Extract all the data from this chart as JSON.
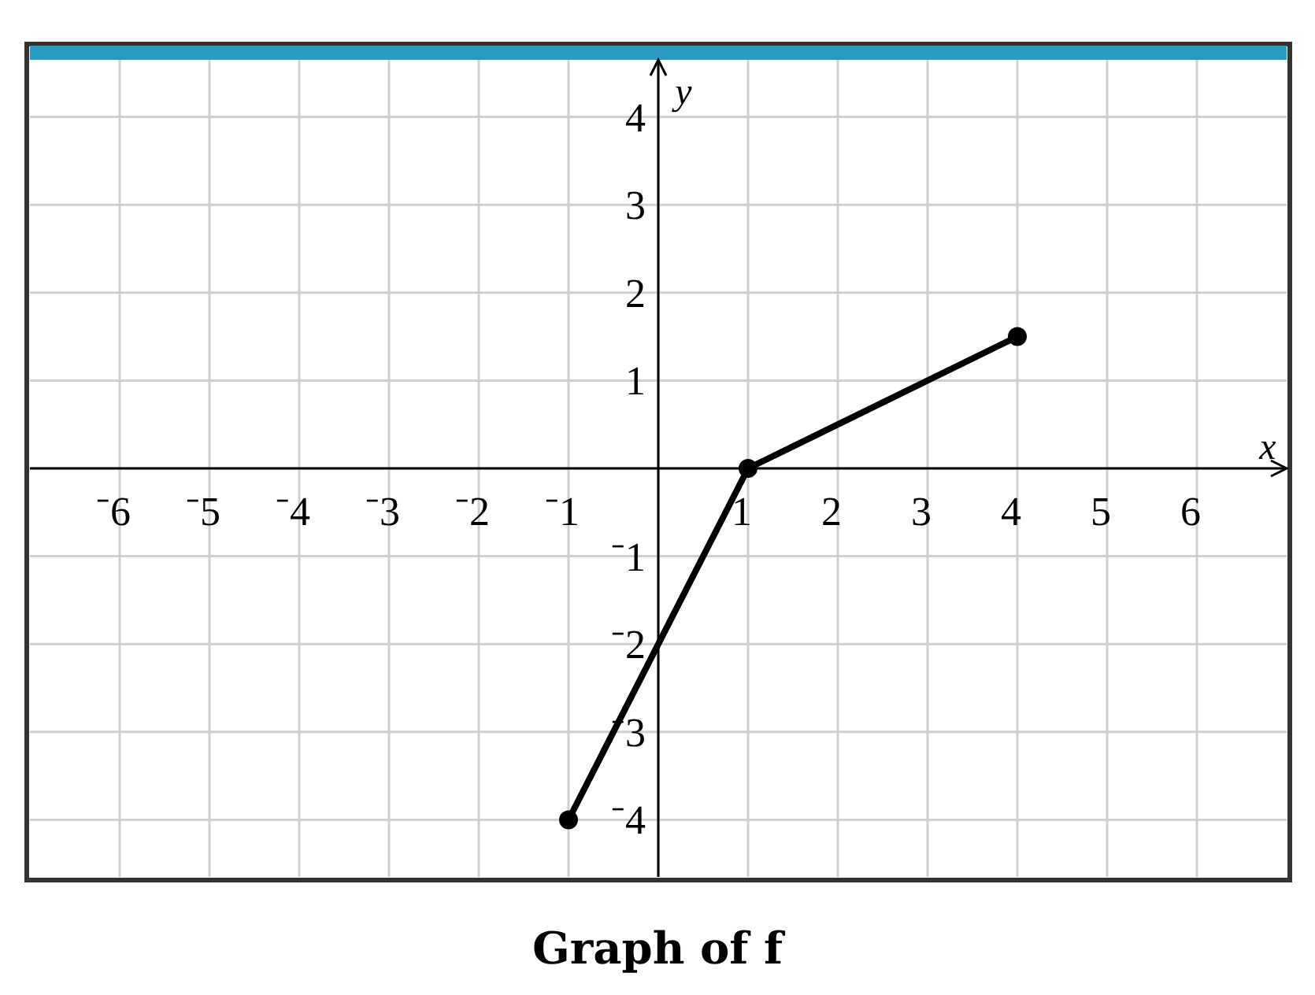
{
  "chart_data": {
    "type": "line",
    "title": "Graph of f",
    "xlabel": "x",
    "ylabel": "y",
    "x": [
      -1,
      1,
      4
    ],
    "series": [
      {
        "color": "#000000",
        "values": [
          -4,
          0,
          1.5
        ]
      }
    ],
    "xlim": [
      -7,
      7
    ],
    "ylim": [
      -4.65,
      4.65
    ],
    "xticks": [
      {
        "value": -6,
        "label": "⁻6"
      },
      {
        "value": -5,
        "label": "⁻5"
      },
      {
        "value": -4,
        "label": "⁻4"
      },
      {
        "value": -3,
        "label": "⁻3"
      },
      {
        "value": -2,
        "label": "⁻2"
      },
      {
        "value": -1,
        "label": "⁻1"
      },
      {
        "value": 0,
        "label": null
      },
      1,
      2,
      3,
      4,
      5,
      6
    ],
    "yticks": [
      {
        "value": -4,
        "label": "⁻4"
      },
      {
        "value": -3,
        "label": "⁻3"
      },
      {
        "value": -2,
        "label": "⁻2"
      },
      {
        "value": -1,
        "label": "⁻1"
      },
      {
        "value": 0,
        "label": null
      },
      1,
      2,
      3,
      4
    ],
    "grid": true,
    "marker": "circle",
    "line_style": "solid"
  }
}
